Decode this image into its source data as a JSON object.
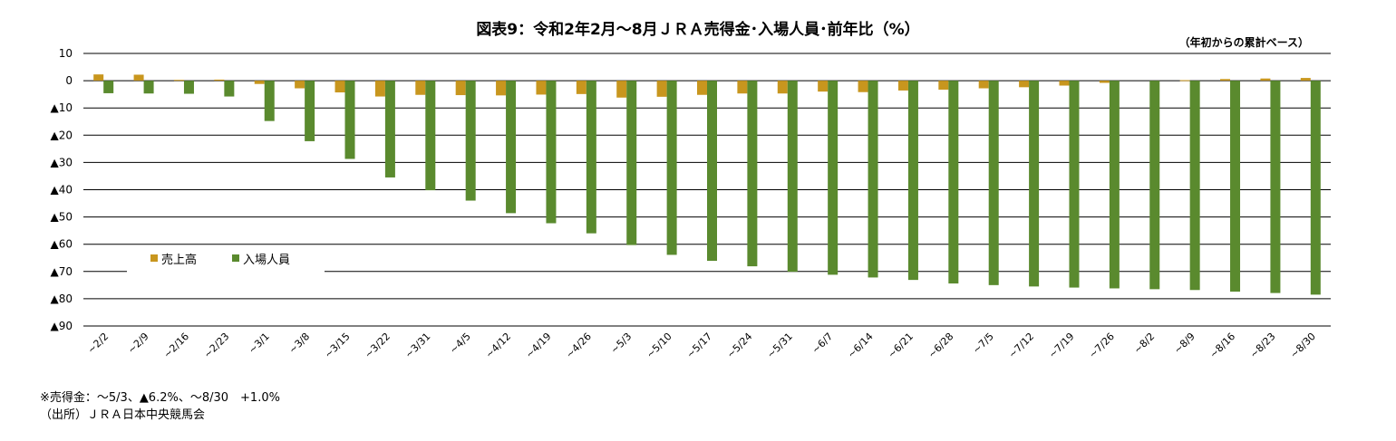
{
  "chart_data": {
    "type": "bar",
    "title": "図表9：令和2年2月～8月ＪＲＡ売得金･入場人員･前年比（%）",
    "unit_note": "（年初からの累計ベース）",
    "ylim": [
      -90,
      10
    ],
    "y_ticks": [
      10,
      0,
      -10,
      -20,
      -30,
      -40,
      -50,
      -60,
      -70,
      -80,
      -90
    ],
    "y_tick_labels": [
      "10",
      "0",
      "▲10",
      "▲20",
      "▲30",
      "▲40",
      "▲50",
      "▲60",
      "▲70",
      "▲80",
      "▲90"
    ],
    "grid": true,
    "legend_position": "left-bottom-inside",
    "categories": [
      "~2/2",
      "~2/9",
      "~2/16",
      "~2/23",
      "~3/1",
      "~3/8",
      "~3/15",
      "~3/22",
      "~3/31",
      "~4/5",
      "~4/12",
      "~4/19",
      "~4/26",
      "~5/3",
      "~5/10",
      "~5/17",
      "~5/24",
      "~5/31",
      "~6/7",
      "~6/14",
      "~6/21",
      "~6/28",
      "~7/5",
      "~7/12",
      "~7/19",
      "~7/26",
      "~8/2",
      "~8/9",
      "~8/16",
      "~8/23",
      "~8/30"
    ],
    "series": [
      {
        "name": "売上高",
        "color": "#c8961e",
        "values": [
          2.3,
          2.2,
          0.3,
          0.4,
          -1.2,
          -2.8,
          -4.3,
          -5.8,
          -5.2,
          -5.3,
          -5.4,
          -5.1,
          -4.9,
          -6.2,
          -5.9,
          -5.2,
          -4.7,
          -4.7,
          -4.0,
          -4.2,
          -3.6,
          -3.3,
          -2.8,
          -2.4,
          -1.8,
          -0.8,
          0.0,
          0.2,
          0.6,
          0.8,
          1.0
        ]
      },
      {
        "name": "入場人員",
        "color": "#5a8a2e",
        "values": [
          -4.6,
          -4.7,
          -4.8,
          -5.8,
          -14.8,
          -22.2,
          -28.7,
          -35.5,
          -40.2,
          -44.0,
          -48.6,
          -52.3,
          -56.0,
          -60.3,
          -63.9,
          -66.1,
          -68.1,
          -70.1,
          -71.2,
          -72.2,
          -73.1,
          -74.4,
          -75.0,
          -75.5,
          -75.9,
          -76.2,
          -76.5,
          -76.8,
          -77.4,
          -77.9,
          -78.5
        ]
      }
    ]
  },
  "footnotes": {
    "line1": "※売得金：～5/3、▲6.2%、～8/30　+1.0%",
    "line2": "（出所）ＪＲＡ日本中央競馬会"
  }
}
